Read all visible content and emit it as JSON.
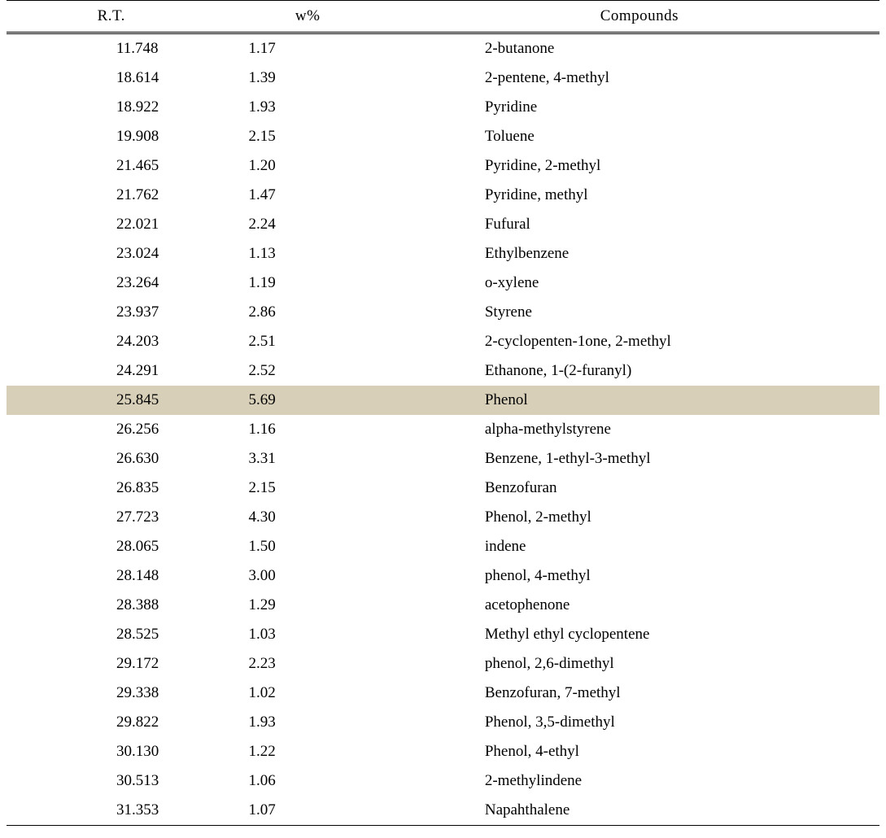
{
  "table": {
    "type": "table",
    "header_fontsize": 19,
    "body_fontsize": 19,
    "background_color": "#ffffff",
    "text_color": "#000000",
    "highlight_color": "#d7cfb8",
    "border_color": "#000000",
    "top_border_width": 1.5,
    "header_border_style": "double",
    "bottom_border_width": 1.5,
    "columns": [
      {
        "key": "rt",
        "label": "R.T.",
        "align": "left",
        "width_pct": 24
      },
      {
        "key": "wt",
        "label": "w%",
        "align": "left",
        "width_pct": 21
      },
      {
        "key": "cmp",
        "label": "Compounds",
        "align": "left",
        "width_pct": 55
      }
    ],
    "rows": [
      {
        "rt": "11.748",
        "wt": "1.17",
        "cmp": "2-butanone",
        "highlight": false
      },
      {
        "rt": "18.614",
        "wt": "1.39",
        "cmp": "2-pentene, 4-methyl",
        "highlight": false
      },
      {
        "rt": "18.922",
        "wt": "1.93",
        "cmp": "Pyridine",
        "highlight": false
      },
      {
        "rt": "19.908",
        "wt": "2.15",
        "cmp": "Toluene",
        "highlight": false
      },
      {
        "rt": "21.465",
        "wt": "1.20",
        "cmp": "Pyridine, 2-methyl",
        "highlight": false
      },
      {
        "rt": "21.762",
        "wt": "1.47",
        "cmp": "Pyridine, methyl",
        "highlight": false
      },
      {
        "rt": "22.021",
        "wt": "2.24",
        "cmp": "Fufural",
        "highlight": false
      },
      {
        "rt": "23.024",
        "wt": "1.13",
        "cmp": "Ethylbenzene",
        "highlight": false
      },
      {
        "rt": "23.264",
        "wt": "1.19",
        "cmp": "o-xylene",
        "highlight": false
      },
      {
        "rt": "23.937",
        "wt": "2.86",
        "cmp": "Styrene",
        "highlight": false
      },
      {
        "rt": "24.203",
        "wt": "2.51",
        "cmp": "2-cyclopenten-1one, 2-methyl",
        "highlight": false
      },
      {
        "rt": "24.291",
        "wt": "2.52",
        "cmp": "Ethanone, 1-(2-furanyl)",
        "highlight": false
      },
      {
        "rt": "25.845",
        "wt": "5.69",
        "cmp": "Phenol",
        "highlight": true
      },
      {
        "rt": "26.256",
        "wt": "1.16",
        "cmp": "alpha-methylstyrene",
        "highlight": false
      },
      {
        "rt": "26.630",
        "wt": "3.31",
        "cmp": "Benzene, 1-ethyl-3-methyl",
        "highlight": false
      },
      {
        "rt": "26.835",
        "wt": "2.15",
        "cmp": "Benzofuran",
        "highlight": false
      },
      {
        "rt": "27.723",
        "wt": "4.30",
        "cmp": "Phenol, 2-methyl",
        "highlight": false
      },
      {
        "rt": "28.065",
        "wt": "1.50",
        "cmp": "indene",
        "highlight": false
      },
      {
        "rt": "28.148",
        "wt": "3.00",
        "cmp": "phenol, 4-methyl",
        "highlight": false
      },
      {
        "rt": "28.388",
        "wt": "1.29",
        "cmp": "acetophenone",
        "highlight": false
      },
      {
        "rt": "28.525",
        "wt": "1.03",
        "cmp": "Methyl ethyl cyclopentene",
        "highlight": false
      },
      {
        "rt": "29.172",
        "wt": "2.23",
        "cmp": "phenol, 2,6-dimethyl",
        "highlight": false
      },
      {
        "rt": "29.338",
        "wt": "1.02",
        "cmp": "Benzofuran, 7-methyl",
        "highlight": false
      },
      {
        "rt": "29.822",
        "wt": "1.93",
        "cmp": "Phenol, 3,5-dimethyl",
        "highlight": false
      },
      {
        "rt": "30.130",
        "wt": "1.22",
        "cmp": "Phenol, 4-ethyl",
        "highlight": false
      },
      {
        "rt": "30.513",
        "wt": "1.06",
        "cmp": "2-methylindene",
        "highlight": false
      },
      {
        "rt": "31.353",
        "wt": "1.07",
        "cmp": "Napahthalene",
        "highlight": false
      }
    ]
  }
}
